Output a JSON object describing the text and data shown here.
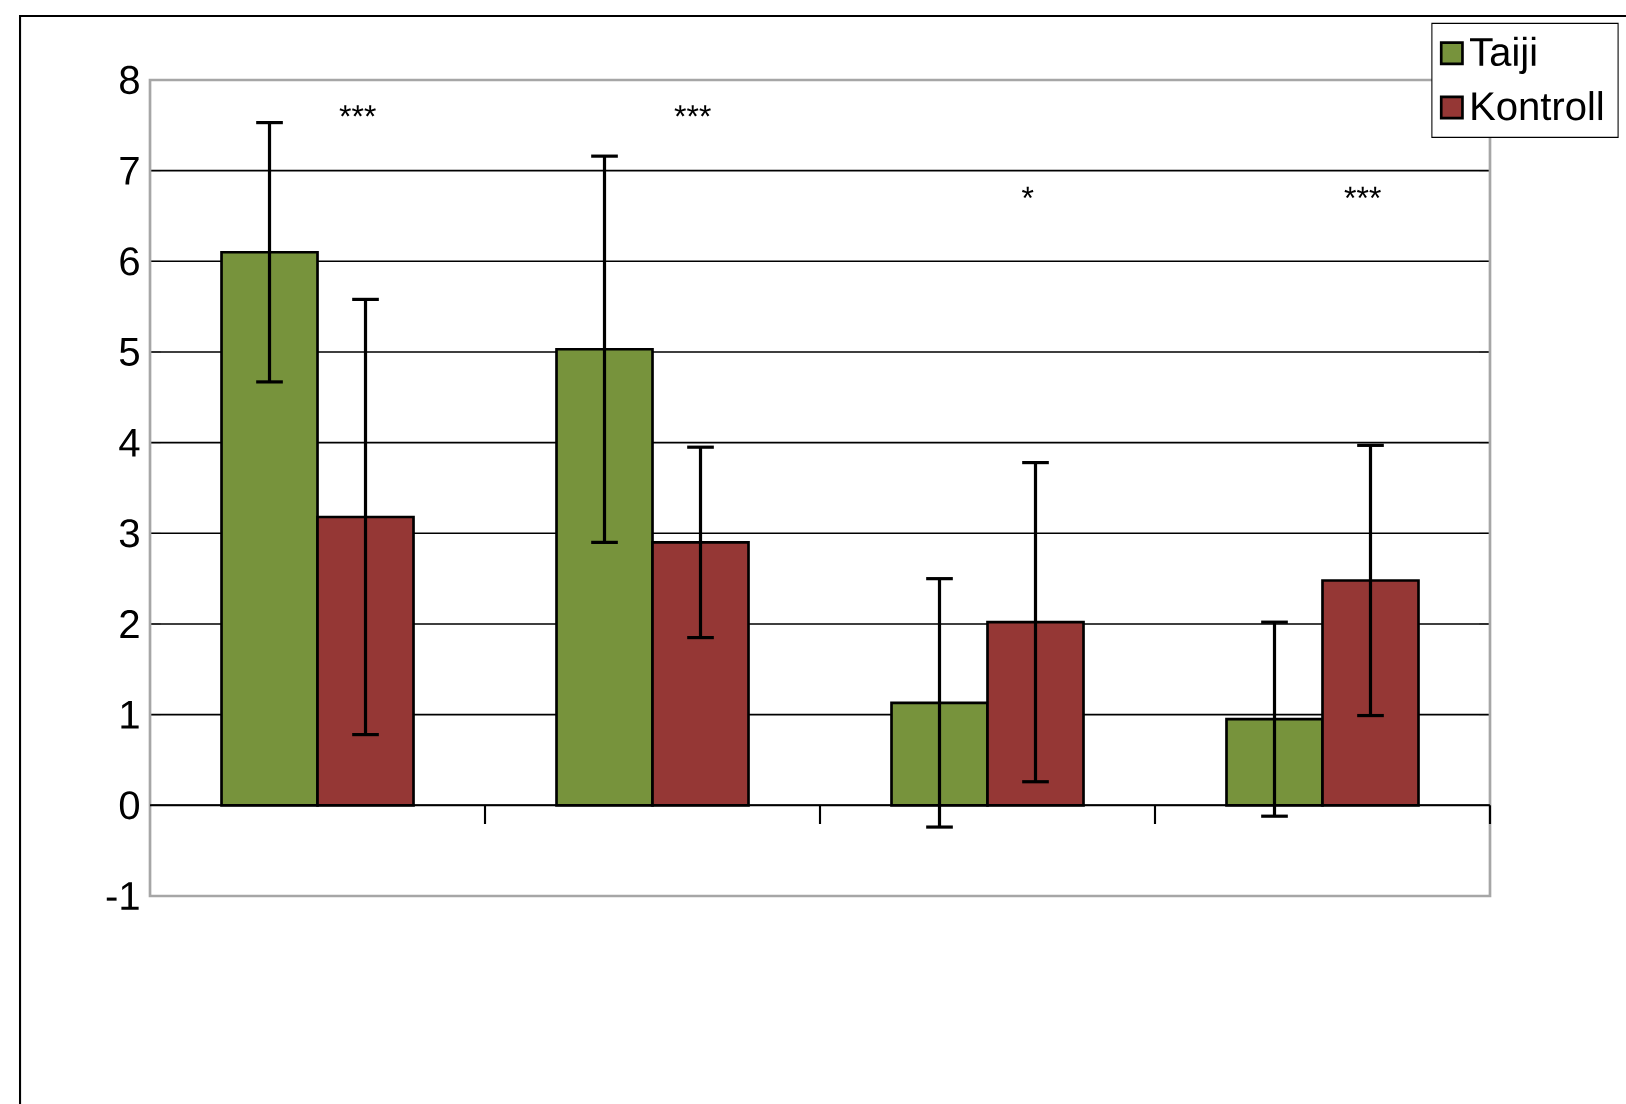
{
  "chart_data": {
    "type": "bar",
    "categories": [
      null,
      null,
      null,
      null
    ],
    "series": [
      {
        "name": "Taiji",
        "color": "#77933c",
        "values": [
          6.1,
          5.03,
          1.13,
          0.95
        ],
        "errors": [
          1.43,
          2.13,
          1.37,
          1.07
        ]
      },
      {
        "name": "Kontroll",
        "color": "#953735",
        "values": [
          3.18,
          2.9,
          2.02,
          2.48
        ],
        "errors": [
          2.4,
          1.05,
          1.76,
          1.49
        ]
      }
    ],
    "ylim": [
      -1,
      8
    ],
    "yticks": [
      -1,
      0,
      1,
      2,
      3,
      4,
      5,
      6,
      7,
      8
    ],
    "grid": "y",
    "legend": "top right",
    "annotations": [
      "***",
      "***",
      "*",
      "***"
    ]
  }
}
